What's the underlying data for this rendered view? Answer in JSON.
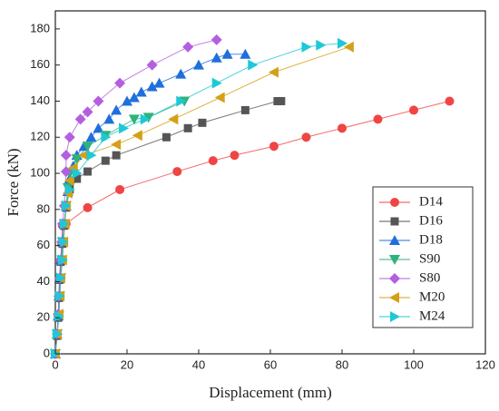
{
  "chart_data": {
    "type": "line",
    "xlabel": "Displacement (mm)",
    "ylabel": "Force (kN)",
    "xlim": [
      0,
      120
    ],
    "ylim": [
      0,
      190
    ],
    "xticks": [
      0,
      20,
      40,
      60,
      80,
      100,
      120
    ],
    "yticks": [
      0,
      20,
      40,
      60,
      80,
      100,
      120,
      140,
      160,
      180
    ],
    "legend": "lower right",
    "series": [
      {
        "name": "D14",
        "color": "#f04545",
        "marker": "circle",
        "x": [
          0,
          0.5,
          0.8,
          1,
          1.2,
          1.5,
          1.8,
          2,
          3,
          9,
          18,
          34,
          44,
          50,
          61,
          70,
          80,
          90,
          100,
          110
        ],
        "values": [
          0,
          10,
          21,
          31,
          41,
          51,
          61,
          71,
          72,
          81,
          91,
          101,
          107,
          110,
          115,
          120,
          125,
          130,
          135,
          140
        ]
      },
      {
        "name": "D16",
        "color": "#555555",
        "marker": "square",
        "x": [
          0,
          0.5,
          0.8,
          1,
          1.2,
          1.5,
          2,
          2.5,
          3,
          4,
          6,
          9,
          14,
          17,
          31,
          37,
          41,
          53,
          62,
          63
        ],
        "values": [
          0,
          10,
          20,
          31,
          41,
          51,
          61,
          71,
          81,
          91,
          97,
          101,
          107,
          110,
          120,
          125,
          128,
          135,
          140,
          140
        ]
      },
      {
        "name": "D18",
        "color": "#1f6fdd",
        "marker": "up",
        "x": [
          0,
          0.5,
          0.8,
          1,
          1.2,
          1.5,
          2,
          2.5,
          3,
          3.5,
          4,
          5,
          6,
          8,
          10,
          12,
          15,
          17,
          20,
          22,
          24,
          27,
          29,
          35,
          40,
          45,
          48,
          53
        ],
        "values": [
          0,
          11,
          21,
          32,
          42,
          52,
          62,
          72,
          82,
          90,
          97,
          104,
          110,
          115,
          120,
          125,
          130,
          135,
          140,
          142,
          145,
          148,
          150,
          155,
          160,
          164,
          166,
          166
        ]
      },
      {
        "name": "S90",
        "color": "#2eb37a",
        "marker": "down",
        "x": [
          0,
          0.5,
          1,
          1.2,
          1.5,
          1.8,
          2,
          2.5,
          3,
          3.5,
          4,
          6,
          9,
          14,
          22,
          26,
          36
        ],
        "values": [
          0,
          11,
          21,
          32,
          42,
          52,
          62,
          72,
          82,
          92,
          100,
          108,
          115,
          121,
          130,
          131,
          140
        ]
      },
      {
        "name": "S80",
        "color": "#b35fe0",
        "marker": "diamond",
        "x": [
          0,
          0.5,
          0.8,
          1,
          1.2,
          1.5,
          1.8,
          2,
          2.5,
          3,
          3,
          4,
          7,
          9,
          12,
          18,
          27,
          37,
          45
        ],
        "values": [
          0,
          11,
          22,
          32,
          42,
          52,
          62,
          72,
          82,
          101,
          110,
          120,
          130,
          134,
          140,
          150,
          160,
          170,
          174
        ]
      },
      {
        "name": "M20",
        "color": "#d4a017",
        "marker": "left",
        "x": [
          0,
          0.5,
          1,
          1.3,
          1.5,
          2,
          2.3,
          2.7,
          3,
          3.5,
          4,
          5,
          8,
          17,
          23,
          33,
          46,
          61,
          82
        ],
        "values": [
          0,
          11,
          22,
          32,
          42,
          52,
          62,
          72,
          82,
          89,
          96,
          103,
          110,
          116,
          121,
          130,
          142,
          156,
          170
        ]
      },
      {
        "name": "M24",
        "color": "#1ec8d6",
        "marker": "right",
        "x": [
          0,
          0.5,
          1,
          1.2,
          1.5,
          2,
          2.2,
          2.5,
          3,
          4,
          6,
          10,
          14,
          19,
          25,
          35,
          45,
          55,
          70,
          74,
          80
        ],
        "values": [
          0,
          11,
          21,
          32,
          42,
          52,
          62,
          72,
          82,
          91,
          100,
          110,
          120,
          125,
          130,
          140,
          150,
          160,
          170,
          171,
          172
        ]
      }
    ]
  }
}
